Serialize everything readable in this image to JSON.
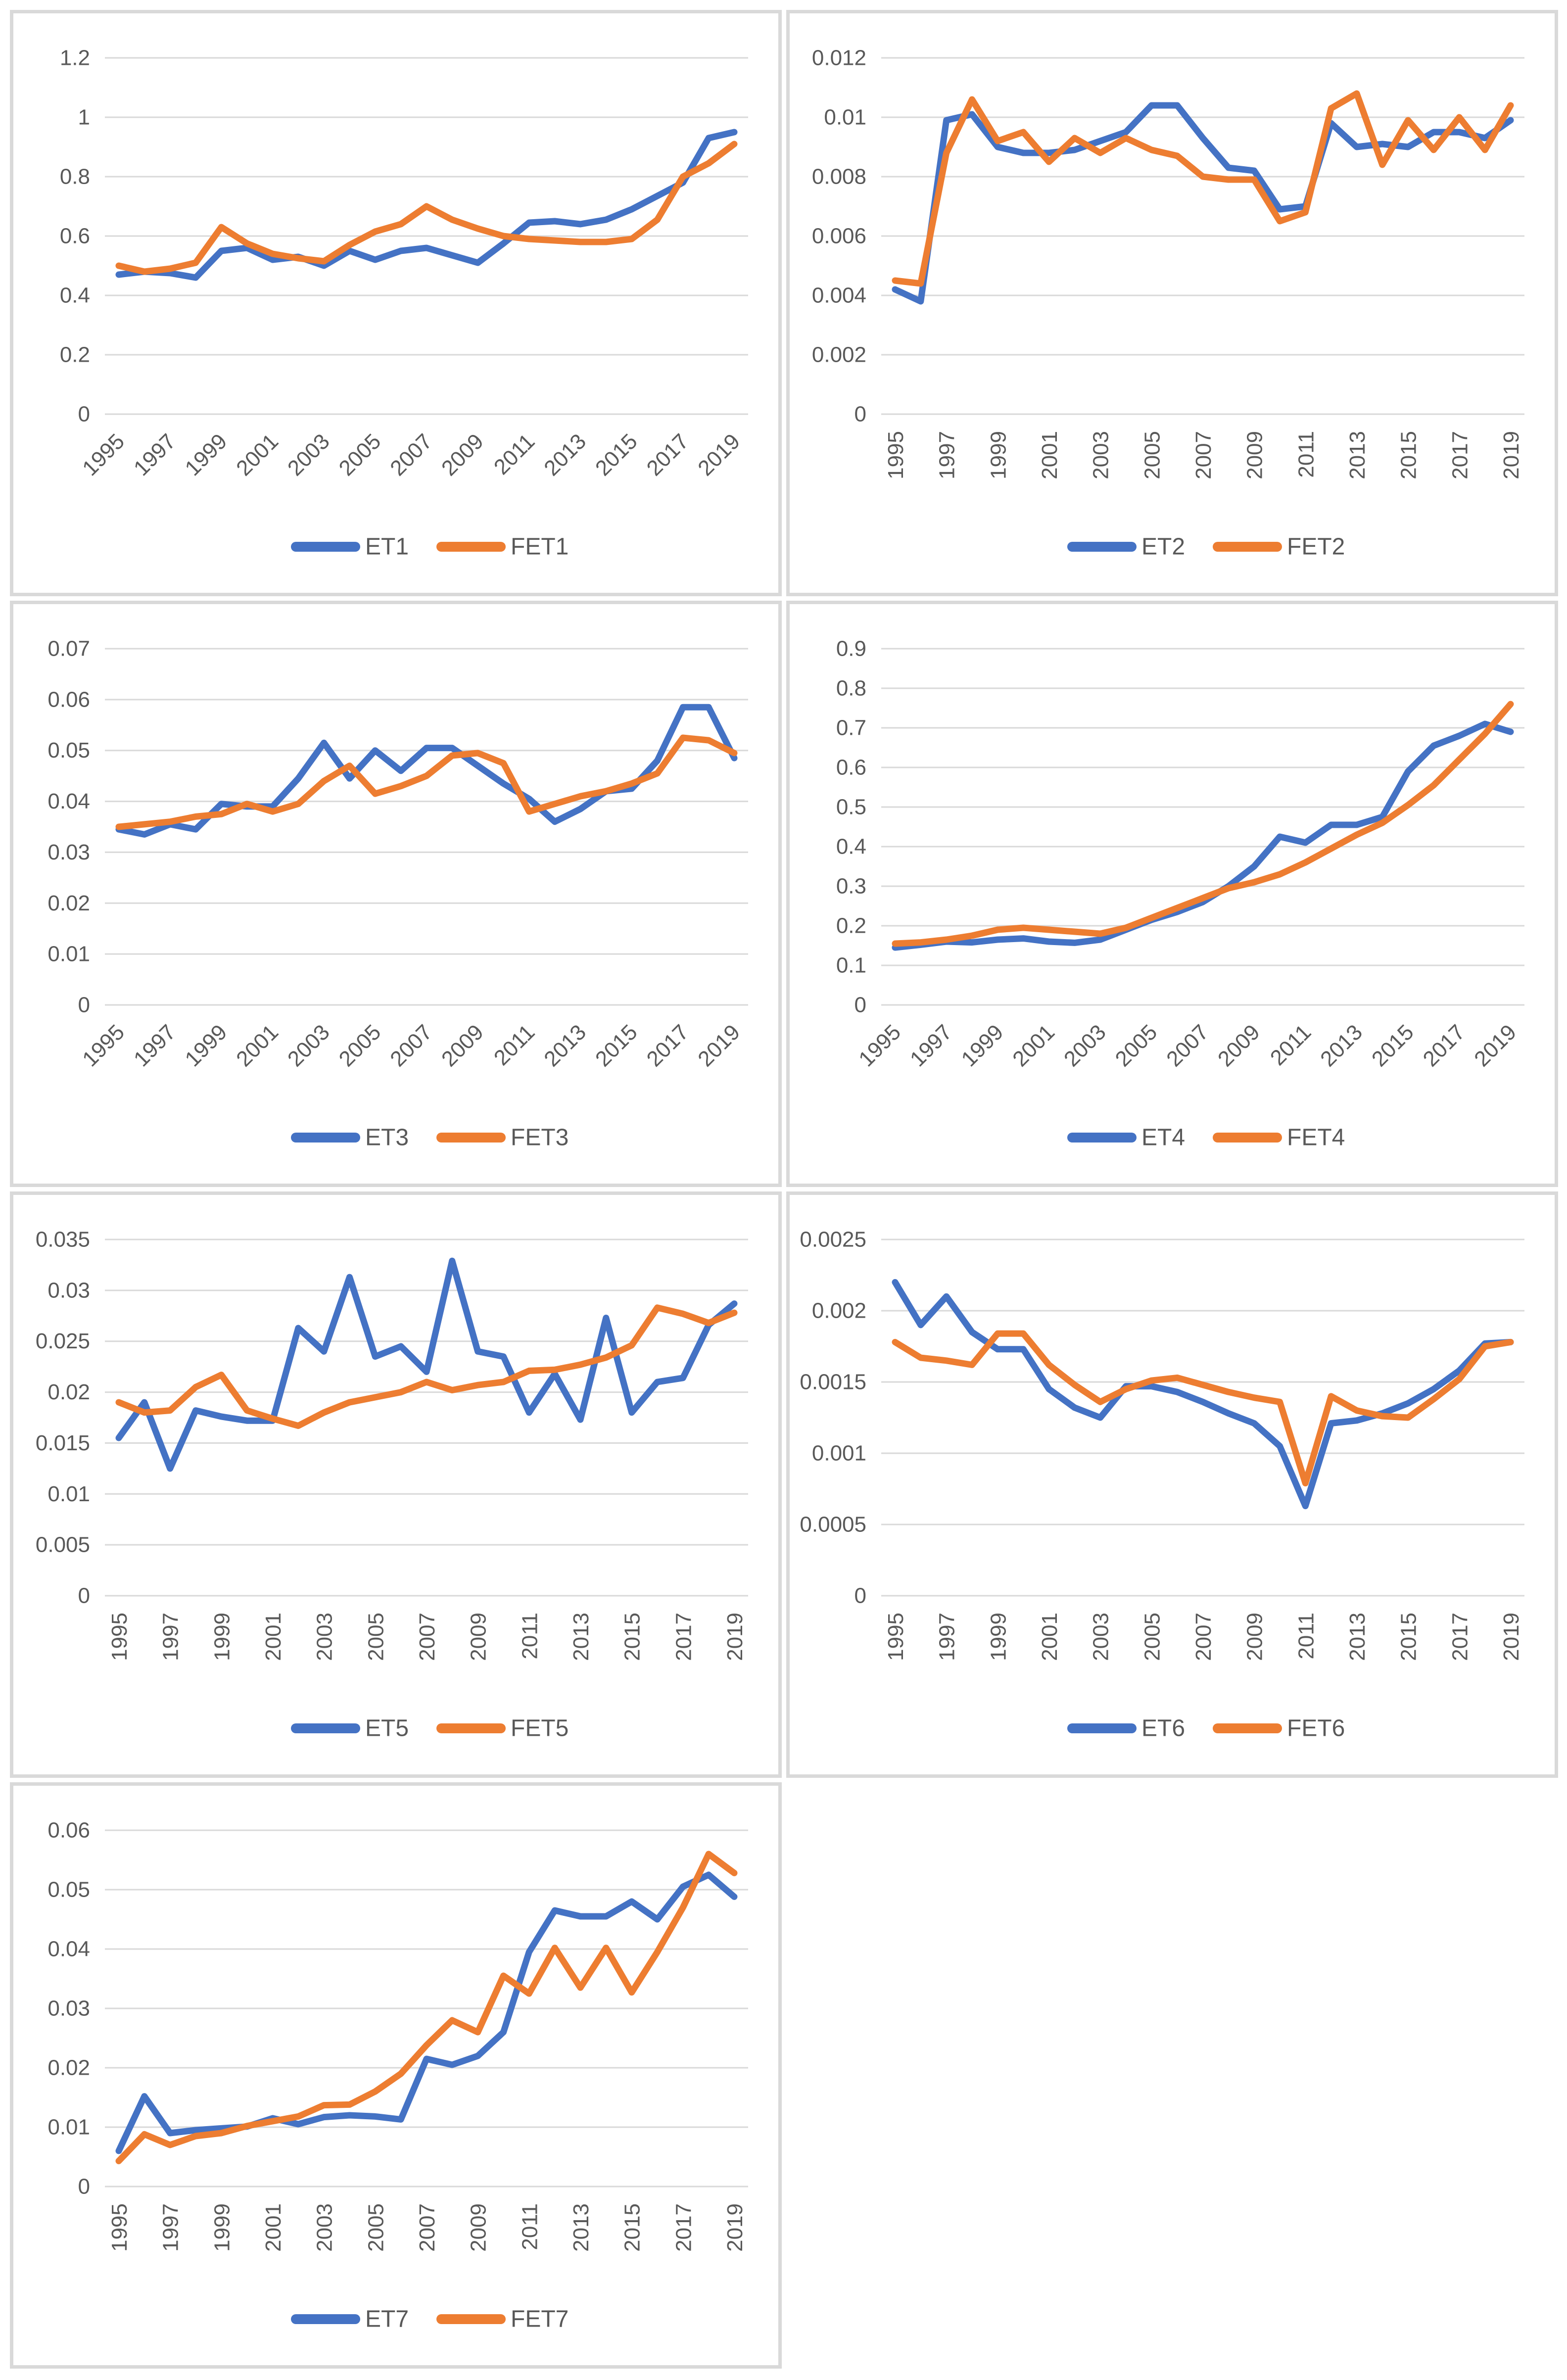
{
  "page": {
    "background": "#ffffff",
    "panel_border_color": "#d9d9d9",
    "gridline_color": "#d9d9d9",
    "axis_text_color": "#595959",
    "series_blue": "#4472C4",
    "series_orange": "#ED7D31"
  },
  "chart_data": [
    {
      "type": "line",
      "x": [
        1995,
        1996,
        1997,
        1998,
        1999,
        2000,
        2001,
        2002,
        2003,
        2004,
        2005,
        2006,
        2007,
        2008,
        2009,
        2010,
        2011,
        2012,
        2013,
        2014,
        2015,
        2016,
        2017,
        2018,
        2019
      ],
      "x_tick_labels": [
        "1995",
        "1997",
        "1999",
        "2001",
        "2003",
        "2005",
        "2007",
        "2009",
        "2011",
        "2013",
        "2015",
        "2017",
        "2019"
      ],
      "x_label_rotation": 45,
      "ylim": [
        0,
        1.2
      ],
      "ystep": 0.2,
      "y_tick_labels": [
        "0",
        "0.2",
        "0.4",
        "0.6",
        "0.8",
        "1",
        "1.2"
      ],
      "grid": true,
      "legend_position": "bottom",
      "series": [
        {
          "name": "ET1",
          "color": "#4472C4",
          "values": [
            0.47,
            0.48,
            0.475,
            0.46,
            0.55,
            0.56,
            0.52,
            0.53,
            0.5,
            0.55,
            0.52,
            0.55,
            0.56,
            0.535,
            0.51,
            0.575,
            0.645,
            0.65,
            0.64,
            0.655,
            0.69,
            0.735,
            0.78,
            0.93,
            0.95
          ]
        },
        {
          "name": "FET1",
          "color": "#ED7D31",
          "values": [
            0.5,
            0.48,
            0.49,
            0.51,
            0.63,
            0.575,
            0.54,
            0.525,
            0.515,
            0.57,
            0.615,
            0.64,
            0.7,
            0.655,
            0.625,
            0.6,
            0.59,
            0.585,
            0.58,
            0.58,
            0.59,
            0.655,
            0.8,
            0.845,
            0.91
          ]
        }
      ]
    },
    {
      "type": "line",
      "x": [
        1995,
        1996,
        1997,
        1998,
        1999,
        2000,
        2001,
        2002,
        2003,
        2004,
        2005,
        2006,
        2007,
        2008,
        2009,
        2010,
        2011,
        2012,
        2013,
        2014,
        2015,
        2016,
        2017,
        2018,
        2019
      ],
      "x_tick_labels": [
        "1995",
        "1997",
        "1999",
        "2001",
        "2003",
        "2005",
        "2007",
        "2009",
        "2011",
        "2013",
        "2015",
        "2017",
        "2019"
      ],
      "x_label_rotation": 90,
      "ylim": [
        0,
        0.012
      ],
      "ystep": 0.002,
      "y_tick_labels": [
        "0",
        "0.002",
        "0.004",
        "0.006",
        "0.008",
        "0.01",
        "0.012"
      ],
      "grid": true,
      "legend_position": "bottom",
      "series": [
        {
          "name": "ET2",
          "color": "#4472C4",
          "values": [
            0.0042,
            0.0038,
            0.0099,
            0.0101,
            0.009,
            0.0088,
            0.0088,
            0.0089,
            0.0092,
            0.0095,
            0.0104,
            0.0104,
            0.0093,
            0.0083,
            0.0082,
            0.0069,
            0.007,
            0.0098,
            0.009,
            0.0091,
            0.009,
            0.0095,
            0.0095,
            0.0093,
            0.0099
          ]
        },
        {
          "name": "FET2",
          "color": "#ED7D31",
          "values": [
            0.0045,
            0.0044,
            0.0088,
            0.0106,
            0.0092,
            0.0095,
            0.0085,
            0.0093,
            0.0088,
            0.0093,
            0.0089,
            0.0087,
            0.008,
            0.0079,
            0.0079,
            0.0065,
            0.0068,
            0.0103,
            0.0108,
            0.0084,
            0.0099,
            0.0089,
            0.01,
            0.0089,
            0.0104
          ]
        }
      ]
    },
    {
      "type": "line",
      "x": [
        1995,
        1996,
        1997,
        1998,
        1999,
        2000,
        2001,
        2002,
        2003,
        2004,
        2005,
        2006,
        2007,
        2008,
        2009,
        2010,
        2011,
        2012,
        2013,
        2014,
        2015,
        2016,
        2017,
        2018,
        2019
      ],
      "x_tick_labels": [
        "1995",
        "1997",
        "1999",
        "2001",
        "2003",
        "2005",
        "2007",
        "2009",
        "2011",
        "2013",
        "2015",
        "2017",
        "2019"
      ],
      "x_label_rotation": 45,
      "ylim": [
        0,
        0.07
      ],
      "ystep": 0.01,
      "y_tick_labels": [
        "0",
        "0.01",
        "0.02",
        "0.03",
        "0.04",
        "0.05",
        "0.06",
        "0.07"
      ],
      "grid": true,
      "legend_position": "bottom",
      "series": [
        {
          "name": "ET3",
          "color": "#4472C4",
          "values": [
            0.0345,
            0.0335,
            0.0355,
            0.0345,
            0.0395,
            0.039,
            0.039,
            0.0445,
            0.0515,
            0.0445,
            0.05,
            0.046,
            0.0505,
            0.0505,
            0.047,
            0.0435,
            0.0405,
            0.036,
            0.0385,
            0.042,
            0.0425,
            0.048,
            0.0585,
            0.0585,
            0.0485
          ]
        },
        {
          "name": "FET3",
          "color": "#ED7D31",
          "values": [
            0.035,
            0.0355,
            0.036,
            0.037,
            0.0375,
            0.0395,
            0.038,
            0.0395,
            0.044,
            0.047,
            0.0415,
            0.043,
            0.045,
            0.049,
            0.0495,
            0.0475,
            0.038,
            0.0395,
            0.041,
            0.042,
            0.0435,
            0.0455,
            0.0525,
            0.052,
            0.0495
          ]
        }
      ]
    },
    {
      "type": "line",
      "x": [
        1995,
        1996,
        1997,
        1998,
        1999,
        2000,
        2001,
        2002,
        2003,
        2004,
        2005,
        2006,
        2007,
        2008,
        2009,
        2010,
        2011,
        2012,
        2013,
        2014,
        2015,
        2016,
        2017,
        2018,
        2019
      ],
      "x_tick_labels": [
        "1995",
        "1997",
        "1999",
        "2001",
        "2003",
        "2005",
        "2007",
        "2009",
        "2011",
        "2013",
        "2015",
        "2017",
        "2019"
      ],
      "x_label_rotation": 45,
      "ylim": [
        0,
        0.9
      ],
      "ystep": 0.1,
      "y_tick_labels": [
        "0",
        "0.1",
        "0.2",
        "0.3",
        "0.4",
        "0.5",
        "0.6",
        "0.7",
        "0.8",
        "0.9"
      ],
      "grid": true,
      "legend_position": "bottom",
      "series": [
        {
          "name": "ET4",
          "color": "#4472C4",
          "values": [
            0.145,
            0.152,
            0.16,
            0.158,
            0.165,
            0.168,
            0.16,
            0.157,
            0.165,
            0.19,
            0.215,
            0.235,
            0.26,
            0.3,
            0.35,
            0.425,
            0.41,
            0.455,
            0.455,
            0.475,
            0.59,
            0.655,
            0.68,
            0.71,
            0.69
          ]
        },
        {
          "name": "FET4",
          "color": "#ED7D31",
          "values": [
            0.155,
            0.158,
            0.165,
            0.175,
            0.19,
            0.195,
            0.19,
            0.185,
            0.18,
            0.195,
            0.22,
            0.245,
            0.27,
            0.295,
            0.31,
            0.33,
            0.36,
            0.395,
            0.43,
            0.46,
            0.505,
            0.555,
            0.62,
            0.685,
            0.76
          ]
        }
      ]
    },
    {
      "type": "line",
      "x": [
        1995,
        1996,
        1997,
        1998,
        1999,
        2000,
        2001,
        2002,
        2003,
        2004,
        2005,
        2006,
        2007,
        2008,
        2009,
        2010,
        2011,
        2012,
        2013,
        2014,
        2015,
        2016,
        2017,
        2018,
        2019
      ],
      "x_tick_labels": [
        "1995",
        "1997",
        "1999",
        "2001",
        "2003",
        "2005",
        "2007",
        "2009",
        "2011",
        "2013",
        "2015",
        "2017",
        "2019"
      ],
      "x_label_rotation": 90,
      "ylim": [
        0,
        0.035
      ],
      "ystep": 0.005,
      "y_tick_labels": [
        "0",
        "0.005",
        "0.01",
        "0.015",
        "0.02",
        "0.025",
        "0.03",
        "0.035"
      ],
      "grid": true,
      "legend_position": "bottom",
      "series": [
        {
          "name": "ET5",
          "color": "#4472C4",
          "values": [
            0.0155,
            0.019,
            0.0125,
            0.0182,
            0.0176,
            0.0172,
            0.0172,
            0.0263,
            0.024,
            0.0313,
            0.0235,
            0.0245,
            0.022,
            0.0329,
            0.024,
            0.0235,
            0.018,
            0.0218,
            0.0173,
            0.0273,
            0.018,
            0.021,
            0.0214,
            0.0266,
            0.0287
          ]
        },
        {
          "name": "FET5",
          "color": "#ED7D31",
          "values": [
            0.019,
            0.018,
            0.0182,
            0.0205,
            0.0217,
            0.0182,
            0.0174,
            0.0167,
            0.018,
            0.019,
            0.0195,
            0.02,
            0.021,
            0.0202,
            0.0207,
            0.021,
            0.0221,
            0.0222,
            0.0227,
            0.0234,
            0.0246,
            0.0283,
            0.0277,
            0.0268,
            0.0278
          ]
        }
      ]
    },
    {
      "type": "line",
      "x": [
        1995,
        1996,
        1997,
        1998,
        1999,
        2000,
        2001,
        2002,
        2003,
        2004,
        2005,
        2006,
        2007,
        2008,
        2009,
        2010,
        2011,
        2012,
        2013,
        2014,
        2015,
        2016,
        2017,
        2018,
        2019
      ],
      "x_tick_labels": [
        "1995",
        "1997",
        "1999",
        "2001",
        "2003",
        "2005",
        "2007",
        "2009",
        "2011",
        "2013",
        "2015",
        "2017",
        "2019"
      ],
      "x_label_rotation": 90,
      "ylim": [
        0,
        0.0025
      ],
      "ystep": 0.0005,
      "y_tick_labels": [
        "0",
        "0.0005",
        "0.001",
        "0.0015",
        "0.002",
        "0.0025"
      ],
      "grid": true,
      "legend_position": "bottom",
      "series": [
        {
          "name": "ET6",
          "color": "#4472C4",
          "values": [
            0.0022,
            0.0019,
            0.0021,
            0.00185,
            0.00173,
            0.00173,
            0.00145,
            0.00132,
            0.00125,
            0.00147,
            0.00147,
            0.00143,
            0.00136,
            0.00128,
            0.00121,
            0.00105,
            0.00063,
            0.00121,
            0.00123,
            0.00128,
            0.00135,
            0.00145,
            0.00158,
            0.00177,
            0.00178
          ]
        },
        {
          "name": "FET6",
          "color": "#ED7D31",
          "values": [
            0.00178,
            0.00167,
            0.00165,
            0.00162,
            0.00184,
            0.00184,
            0.00162,
            0.00148,
            0.00136,
            0.00145,
            0.00151,
            0.00153,
            0.00148,
            0.00143,
            0.00139,
            0.00136,
            0.00079,
            0.0014,
            0.0013,
            0.00126,
            0.00125,
            0.00138,
            0.00152,
            0.00175,
            0.00178
          ]
        }
      ]
    },
    {
      "type": "line",
      "x": [
        1995,
        1996,
        1997,
        1998,
        1999,
        2000,
        2001,
        2002,
        2003,
        2004,
        2005,
        2006,
        2007,
        2008,
        2009,
        2010,
        2011,
        2012,
        2013,
        2014,
        2015,
        2016,
        2017,
        2018,
        2019
      ],
      "x_tick_labels": [
        "1995",
        "1997",
        "1999",
        "2001",
        "2003",
        "2005",
        "2007",
        "2009",
        "2011",
        "2013",
        "2015",
        "2017",
        "2019"
      ],
      "x_label_rotation": 90,
      "ylim": [
        0,
        0.06
      ],
      "ystep": 0.01,
      "y_tick_labels": [
        "0",
        "0.01",
        "0.02",
        "0.03",
        "0.04",
        "0.05",
        "0.06"
      ],
      "grid": true,
      "legend_position": "bottom",
      "series": [
        {
          "name": "ET7",
          "color": "#4472C4",
          "values": [
            0.006,
            0.0152,
            0.009,
            0.0095,
            0.0098,
            0.0101,
            0.0115,
            0.0105,
            0.0117,
            0.012,
            0.0118,
            0.0113,
            0.0215,
            0.0205,
            0.022,
            0.026,
            0.0395,
            0.0465,
            0.0455,
            0.0455,
            0.048,
            0.045,
            0.0505,
            0.0525,
            0.0488
          ]
        },
        {
          "name": "FET7",
          "color": "#ED7D31",
          "values": [
            0.0043,
            0.0088,
            0.007,
            0.0085,
            0.009,
            0.0102,
            0.011,
            0.0118,
            0.0137,
            0.0138,
            0.016,
            0.019,
            0.0238,
            0.028,
            0.026,
            0.0355,
            0.0325,
            0.0402,
            0.0335,
            0.0402,
            0.0327,
            0.0395,
            0.047,
            0.056,
            0.0528
          ]
        }
      ]
    }
  ]
}
